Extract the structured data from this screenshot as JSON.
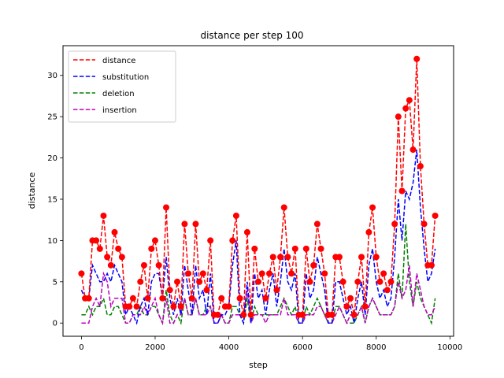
{
  "chart_data": {
    "type": "line",
    "title": "distance per step 100",
    "xlabel": "step",
    "ylabel": "distance",
    "xlim": [
      -500,
      10100
    ],
    "ylim": [
      -1.6,
      33.6
    ],
    "xticks": [
      0,
      2000,
      4000,
      6000,
      8000,
      10000
    ],
    "yticks": [
      0,
      5,
      10,
      15,
      20,
      25,
      30
    ],
    "grid": false,
    "legend": "top-left",
    "x": [
      0,
      100,
      200,
      300,
      400,
      500,
      600,
      700,
      800,
      900,
      1000,
      1100,
      1200,
      1300,
      1400,
      1500,
      1600,
      1700,
      1800,
      1900,
      2000,
      2100,
      2200,
      2300,
      2400,
      2500,
      2600,
      2700,
      2800,
      2900,
      3000,
      3100,
      3200,
      3300,
      3400,
      3500,
      3600,
      3700,
      3800,
      3900,
      4000,
      4100,
      4200,
      4300,
      4400,
      4500,
      4600,
      4700,
      4800,
      4900,
      5000,
      5100,
      5200,
      5300,
      5400,
      5500,
      5600,
      5700,
      5800,
      5900,
      6000,
      6100,
      6200,
      6300,
      6400,
      6500,
      6600,
      6700,
      6800,
      6900,
      7000,
      7100,
      7200,
      7300,
      7400,
      7500,
      7600,
      7700,
      7800,
      7900,
      8000,
      8100,
      8200,
      8300,
      8400,
      8500,
      8600,
      8700,
      8800,
      8900,
      9000,
      9100,
      9200,
      9300,
      9400,
      9500,
      9600
    ],
    "series": [
      {
        "name": "distance",
        "color": "#ff0000",
        "marker": "circle",
        "values": [
          6,
          3,
          3,
          10,
          10,
          9,
          13,
          8,
          7,
          11,
          9,
          8,
          2,
          2,
          3,
          2,
          5,
          7,
          3,
          9,
          10,
          7,
          3,
          14,
          4,
          2,
          5,
          2,
          12,
          6,
          3,
          12,
          5,
          6,
          4,
          10,
          1,
          1,
          3,
          2,
          2,
          10,
          13,
          3,
          1,
          11,
          1,
          9,
          5,
          6,
          3,
          6,
          8,
          4,
          8,
          14,
          8,
          6,
          9,
          1,
          1,
          9,
          5,
          7,
          12,
          9,
          6,
          1,
          1,
          8,
          8,
          5,
          2,
          3,
          1,
          5,
          8,
          2,
          11,
          14,
          8,
          5,
          6,
          4,
          5,
          12,
          25,
          16,
          26,
          27,
          21,
          32,
          19,
          12,
          7,
          7,
          13
        ]
      },
      {
        "name": "substitution",
        "color": "#0000ff",
        "marker": "none",
        "values": [
          4,
          3,
          3,
          7,
          6,
          5,
          5,
          6,
          5,
          7,
          6,
          5,
          1,
          2,
          1,
          0,
          2,
          3,
          1,
          5,
          6,
          6,
          3,
          8,
          3,
          1,
          3,
          1,
          7,
          4,
          1,
          7,
          3,
          4,
          1,
          6,
          0,
          0,
          1,
          1,
          2,
          7,
          10,
          1,
          0,
          5,
          0,
          6,
          3,
          4,
          1,
          4,
          6,
          2,
          5,
          9,
          5,
          4,
          6,
          0,
          0,
          6,
          3,
          4,
          8,
          6,
          4,
          0,
          0,
          5,
          5,
          3,
          1,
          2,
          0,
          3,
          5,
          1,
          7,
          9,
          5,
          3,
          4,
          2,
          3,
          8,
          15,
          10,
          16,
          15,
          17,
          21,
          14,
          9,
          5,
          6,
          9
        ]
      },
      {
        "name": "deletion",
        "color": "#008000",
        "marker": "none",
        "values": [
          1,
          1,
          2,
          1,
          2,
          2,
          3,
          1,
          1,
          2,
          2,
          1,
          0,
          0,
          1,
          1,
          2,
          1,
          1,
          2,
          2,
          1,
          0,
          4,
          1,
          0,
          1,
          0,
          3,
          1,
          1,
          3,
          1,
          1,
          2,
          2,
          0,
          0,
          1,
          0,
          0,
          2,
          2,
          1,
          0,
          3,
          0,
          2,
          1,
          1,
          1,
          1,
          1,
          1,
          2,
          3,
          2,
          1,
          2,
          0,
          0,
          2,
          1,
          2,
          3,
          2,
          1,
          0,
          0,
          2,
          2,
          1,
          0,
          0,
          0,
          1,
          2,
          0,
          2,
          3,
          2,
          1,
          1,
          1,
          1,
          2,
          6,
          3,
          12,
          5,
          2,
          5,
          3,
          2,
          1,
          0,
          3
        ]
      },
      {
        "name": "insertion",
        "color": "#bf00bf",
        "marker": "none",
        "values": [
          0,
          0,
          0,
          2,
          3,
          2,
          6,
          5,
          2,
          3,
          3,
          3,
          0,
          0,
          1,
          1,
          1,
          2,
          1,
          2,
          3,
          1,
          0,
          3,
          0,
          0,
          1,
          1,
          3,
          1,
          1,
          3,
          1,
          1,
          1,
          2,
          0,
          0,
          1,
          0,
          0,
          1,
          1,
          1,
          1,
          4,
          0,
          1,
          1,
          1,
          0,
          1,
          1,
          1,
          1,
          3,
          1,
          1,
          1,
          0,
          0,
          1,
          1,
          1,
          2,
          2,
          1,
          0,
          0,
          1,
          2,
          1,
          0,
          1,
          1,
          1,
          2,
          0,
          2,
          3,
          2,
          1,
          1,
          1,
          1,
          2,
          5,
          3,
          4,
          7,
          2,
          6,
          4,
          2,
          1,
          1,
          2
        ]
      }
    ]
  }
}
